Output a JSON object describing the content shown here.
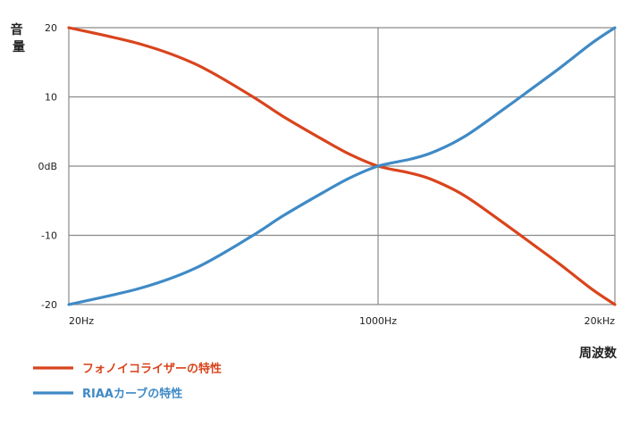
{
  "chart_data": {
    "type": "line",
    "title": "",
    "xlabel": "周波数",
    "ylabel": "音量",
    "xscale": "log",
    "x_tick_labels": [
      "20Hz",
      "1000Hz",
      "20kHz"
    ],
    "x_tick_values": [
      20,
      1000,
      20000
    ],
    "y_tick_labels": [
      "20",
      "10",
      "0dB",
      "-10",
      "-20"
    ],
    "y_tick_values": [
      20,
      10,
      0,
      -10,
      -20
    ],
    "xlim": [
      20,
      20000
    ],
    "ylim": [
      -20,
      20
    ],
    "grid": true,
    "legend_position": "bottom-left",
    "x": [
      20,
      50,
      100,
      200,
      300,
      500,
      700,
      1000,
      1500,
      2000,
      3000,
      5000,
      7000,
      10000,
      15000,
      20000
    ],
    "series": [
      {
        "name": "フォノイコライザーの特性",
        "color": "#d9441c",
        "values": [
          20,
          17.6,
          14.7,
          10.2,
          7.2,
          3.8,
          1.7,
          0,
          -1.0,
          -2.0,
          -4.3,
          -8.4,
          -11.2,
          -14.2,
          -17.8,
          -20
        ]
      },
      {
        "name": "RIAAカーブの特性",
        "color": "#3f8ac6",
        "values": [
          -20,
          -17.6,
          -14.7,
          -10.2,
          -7.2,
          -3.8,
          -1.7,
          0,
          1.0,
          2.0,
          4.3,
          8.4,
          11.2,
          14.2,
          17.8,
          20
        ]
      }
    ]
  }
}
